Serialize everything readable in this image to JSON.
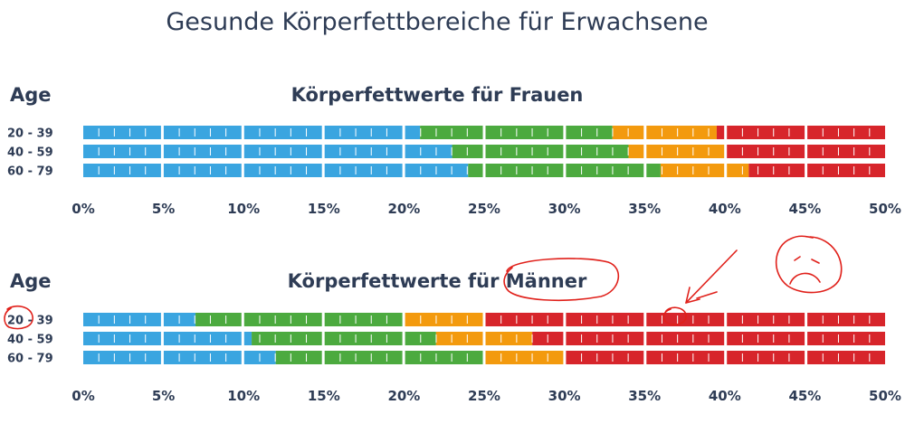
{
  "page": {
    "title": "Gesunde Körperfettbereiche für Erwachsene"
  },
  "colors": {
    "underfat": "#3AA5E0",
    "healthy": "#4CAA3F",
    "overfat": "#F39A0E",
    "obese": "#D7252B",
    "text": "#2E3C55",
    "annotation": "#E0201A"
  },
  "chart_data": [
    {
      "type": "stacked-range-bar",
      "title": "Körperfettwerte für Frauen",
      "row_header": "Age",
      "x_unit": "%",
      "xlim": [
        0,
        50
      ],
      "x_ticks": [
        "0%",
        "5%",
        "10%",
        "15%",
        "20%",
        "25%",
        "30%",
        "35%",
        "40%",
        "45%",
        "50%"
      ],
      "rows": [
        {
          "label": "20 - 39",
          "segments": [
            {
              "from": 0,
              "to": 21,
              "color": "underfat"
            },
            {
              "from": 21,
              "to": 33,
              "color": "healthy"
            },
            {
              "from": 33,
              "to": 39.5,
              "color": "overfat"
            },
            {
              "from": 39.5,
              "to": 50,
              "color": "obese"
            }
          ]
        },
        {
          "label": "40 - 59",
          "segments": [
            {
              "from": 0,
              "to": 23,
              "color": "underfat"
            },
            {
              "from": 23,
              "to": 34,
              "color": "healthy"
            },
            {
              "from": 34,
              "to": 40,
              "color": "overfat"
            },
            {
              "from": 40,
              "to": 50,
              "color": "obese"
            }
          ]
        },
        {
          "label": "60 - 79",
          "segments": [
            {
              "from": 0,
              "to": 24,
              "color": "underfat"
            },
            {
              "from": 24,
              "to": 36,
              "color": "healthy"
            },
            {
              "from": 36,
              "to": 41.5,
              "color": "overfat"
            },
            {
              "from": 41.5,
              "to": 50,
              "color": "obese"
            }
          ]
        }
      ]
    },
    {
      "type": "stacked-range-bar",
      "title": "Körperfettwerte für Männer",
      "row_header": "Age",
      "x_unit": "%",
      "xlim": [
        0,
        50
      ],
      "x_ticks": [
        "0%",
        "5%",
        "10%",
        "15%",
        "20%",
        "25%",
        "30%",
        "35%",
        "40%",
        "45%",
        "50%"
      ],
      "rows": [
        {
          "label": "20 - 39",
          "segments": [
            {
              "from": 0,
              "to": 7,
              "color": "underfat"
            },
            {
              "from": 7,
              "to": 20,
              "color": "healthy"
            },
            {
              "from": 20,
              "to": 25,
              "color": "overfat"
            },
            {
              "from": 25,
              "to": 50,
              "color": "obese"
            }
          ]
        },
        {
          "label": "40 - 59",
          "segments": [
            {
              "from": 0,
              "to": 10.5,
              "color": "underfat"
            },
            {
              "from": 10.5,
              "to": 22,
              "color": "healthy"
            },
            {
              "from": 22,
              "to": 28,
              "color": "overfat"
            },
            {
              "from": 28,
              "to": 50,
              "color": "obese"
            }
          ]
        },
        {
          "label": "60 - 79",
          "segments": [
            {
              "from": 0,
              "to": 12,
              "color": "underfat"
            },
            {
              "from": 12,
              "to": 25,
              "color": "healthy"
            },
            {
              "from": 25,
              "to": 30,
              "color": "overfat"
            },
            {
              "from": 30,
              "to": 50,
              "color": "obese"
            }
          ]
        }
      ]
    }
  ]
}
